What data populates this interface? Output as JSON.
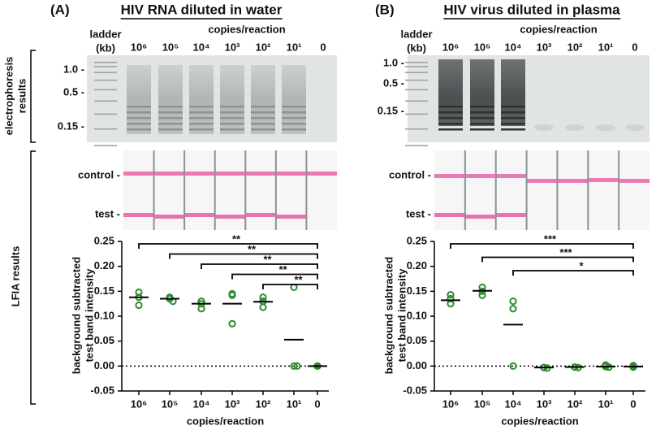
{
  "figure": {
    "electrophoresis_label": [
      "electrophoresis",
      "results"
    ],
    "lfia_label": "LFIA results",
    "panels": [
      {
        "label": "(A)",
        "title": "HIV RNA diluted in water",
        "ladder_header": [
          "ladder",
          "(kb)"
        ],
        "lanes_header": "copies/reaction",
        "lanes": [
          "10⁶",
          "10⁵",
          "10⁴",
          "10³",
          "10²",
          "10¹",
          "0"
        ],
        "size_labels": [
          "1.0 -",
          "0.5 -",
          "0.15 -"
        ],
        "strip_labels": [
          "control -",
          "test -"
        ]
      },
      {
        "label": "(B)",
        "title": "HIV virus diluted in plasma",
        "ladder_header": [
          "ladder",
          "(kb)"
        ],
        "lanes_header": "copies/reaction",
        "lanes": [
          "10⁶",
          "10⁵",
          "10⁴",
          "10³",
          "10²",
          "10¹",
          "0"
        ],
        "size_labels": [
          "1.0 -",
          "0.5 -",
          "0.15 -"
        ],
        "strip_labels": [
          "control -",
          "test -"
        ]
      }
    ]
  },
  "chart_data": [
    {
      "type": "dot",
      "ylabel": [
        "background subtracted",
        "test band intensity"
      ],
      "xlabel": "copies/reaction",
      "categories": [
        "10⁶",
        "10⁵",
        "10⁴",
        "10³",
        "10²",
        "10¹",
        "0"
      ],
      "values": [
        0.138,
        0.135,
        0.125,
        0.125,
        0.129,
        0.053,
        0
      ],
      "replicates": [
        [
          0.148,
          0.138,
          0.122
        ],
        [
          0.138,
          0.135,
          0.13
        ],
        [
          0.13,
          0.125,
          0.115
        ],
        [
          0.145,
          0.142,
          0.085
        ],
        [
          0.138,
          0.13,
          0.118
        ],
        [
          0.158,
          0,
          0
        ],
        [
          0,
          0,
          0
        ]
      ],
      "ylim": [
        -0.05,
        0.25
      ],
      "yticks": [
        -0.05,
        {
          "value": 0,
          "label": "0.00"
        },
        0.05,
        {
          "value": 0.1,
          "label": "0.10"
        },
        0.15,
        {
          "value": 0.2,
          "label": "0.20"
        },
        0.25
      ],
      "color": "#2e8b2e",
      "zero_line": true,
      "comparisons": [
        {
          "groups": [
            "10⁶",
            "0"
          ],
          "label": "**"
        },
        {
          "groups": [
            "10⁵",
            "0"
          ],
          "label": "**"
        },
        {
          "groups": [
            "10⁴",
            "0"
          ],
          "label": "**"
        },
        {
          "groups": [
            "10³",
            "0"
          ],
          "label": "**"
        },
        {
          "groups": [
            "10²",
            "0"
          ],
          "label": "**"
        }
      ]
    },
    {
      "type": "dot",
      "ylabel": [
        "background subtracted",
        "test band intensity"
      ],
      "xlabel": "copies/reaction",
      "categories": [
        "10⁶",
        "10⁵",
        "10⁴",
        "10³",
        "10²",
        "10¹",
        "0"
      ],
      "values": [
        0.132,
        0.151,
        0.083,
        -0.003,
        -0.002,
        -0.001,
        -0.001
      ],
      "replicates": [
        [
          0.143,
          0.135,
          0.125
        ],
        [
          0.158,
          0.15,
          0.142
        ],
        [
          0.13,
          0.115,
          0
        ],
        [
          -0.003,
          -0.003,
          -0.004
        ],
        [
          -0.002,
          -0.002,
          -0.003
        ],
        [
          0.002,
          -0.001,
          -0.002
        ],
        [
          0.001,
          0,
          -0.002
        ]
      ],
      "ylim": [
        -0.05,
        0.25
      ],
      "yticks": [
        -0.05,
        {
          "value": 0,
          "label": "0.00"
        },
        0.05,
        {
          "value": 0.1,
          "label": "0.10"
        },
        0.15,
        {
          "value": 0.2,
          "label": "0.20"
        },
        0.25
      ],
      "color": "#2e8b2e",
      "zero_line": true,
      "comparisons": [
        {
          "groups": [
            "10⁶",
            "0"
          ],
          "label": "***"
        },
        {
          "groups": [
            "10⁵",
            "0"
          ],
          "label": "***"
        },
        {
          "groups": [
            "10⁴",
            "0"
          ],
          "label": "*"
        }
      ]
    }
  ]
}
